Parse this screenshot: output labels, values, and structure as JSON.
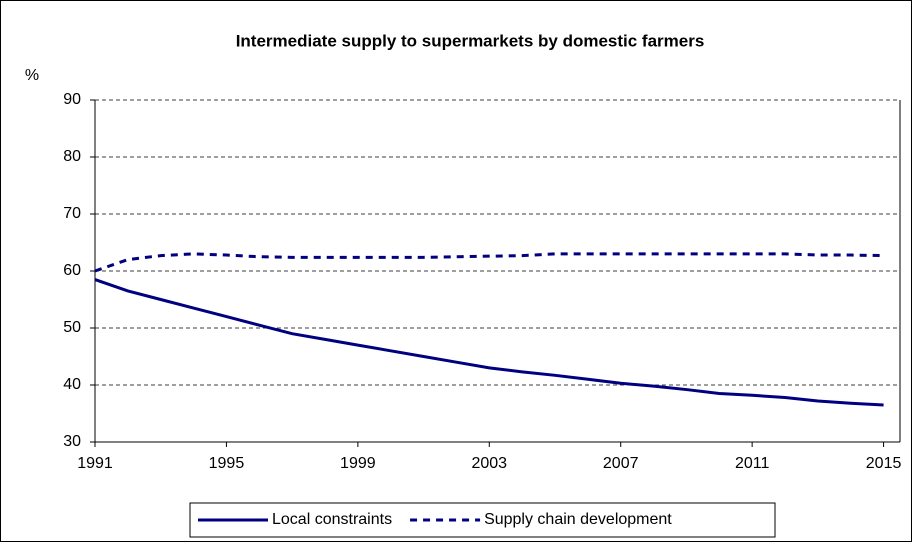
{
  "chart_data": {
    "type": "line",
    "title": "Intermediate supply to supermarkets by domestic farmers",
    "y_label": "%",
    "x": [
      1991,
      1992,
      1993,
      1994,
      1995,
      1996,
      1997,
      1998,
      1999,
      2000,
      2001,
      2002,
      2003,
      2004,
      2005,
      2006,
      2007,
      2008,
      2009,
      2010,
      2011,
      2012,
      2013,
      2014,
      2015
    ],
    "series": [
      {
        "name": "Local constraints",
        "color": "#000080",
        "dash": "solid",
        "values": [
          58.5,
          56.5,
          55,
          53.5,
          52,
          50.5,
          49,
          48,
          47,
          46,
          45,
          44,
          43,
          42.3,
          41.7,
          41,
          40.3,
          39.8,
          39.2,
          38.5,
          38.2,
          37.8,
          37.2,
          36.8,
          36.5
        ]
      },
      {
        "name": "Supply chain development",
        "color": "#000080",
        "dash": "dashed",
        "values": [
          60,
          62,
          62.7,
          63,
          62.8,
          62.5,
          62.4,
          62.4,
          62.4,
          62.4,
          62.4,
          62.5,
          62.6,
          62.7,
          63,
          63,
          63,
          63,
          63,
          63,
          63,
          63,
          62.8,
          62.8,
          62.7
        ]
      }
    ],
    "xlim": [
      1991,
      2015.5
    ],
    "xticks": [
      1991,
      1995,
      1999,
      2003,
      2007,
      2011,
      2015
    ],
    "ylim": [
      30,
      90
    ],
    "yticks": [
      30,
      40,
      50,
      60,
      70,
      80,
      90
    ],
    "grid": true,
    "legend": "bottom"
  }
}
